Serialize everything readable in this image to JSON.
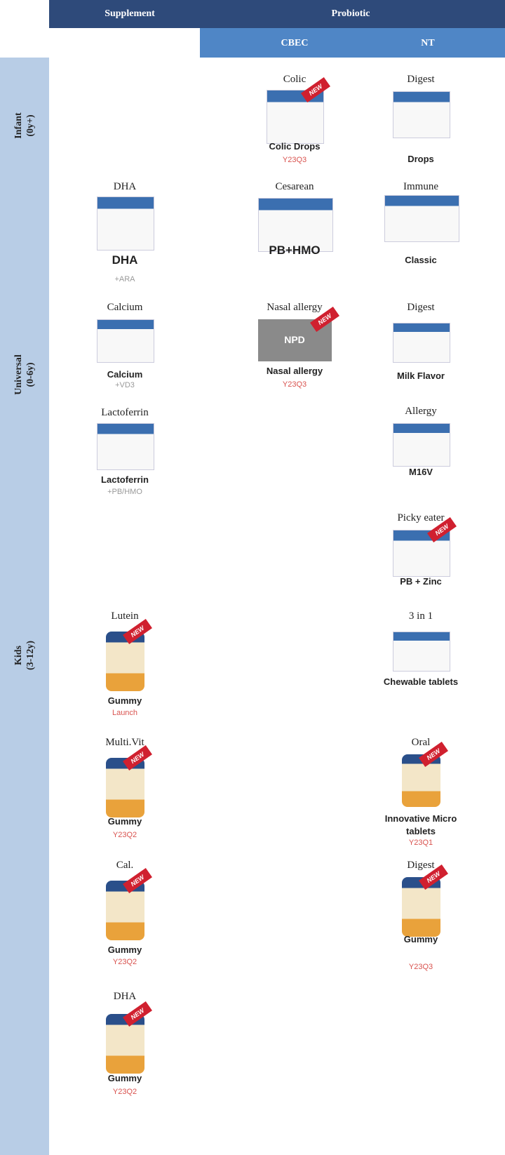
{
  "header": {
    "supplement": "Supplement",
    "probiotic": "Probiotic",
    "cbec": "CBEC",
    "nt": "NT"
  },
  "rows": [
    {
      "name": "Infant",
      "range": "(0y+)"
    },
    {
      "name": "Universal",
      "range": "(0-6y)"
    },
    {
      "name": "Kids",
      "range": "(3-12y)"
    }
  ],
  "badge": "NEW",
  "columns": {
    "supplement": [
      {
        "title": "DHA",
        "name": "DHA",
        "note": "+ARA",
        "note_color": "#999999"
      },
      {
        "title": "Calcium",
        "name": "Calcium",
        "note": "+VD3",
        "note_color": "#999999"
      },
      {
        "title": "Lactoferrin",
        "name": "Lactoferrin",
        "note": "+PB/HMO",
        "note_color": "#999999"
      },
      {
        "title": "Lutein",
        "name": "Gummy",
        "note": "Launch",
        "note_color": "#d9534f"
      },
      {
        "title": "Multi.Vit",
        "name": "Gummy",
        "note": "Y23Q2",
        "note_color": "#d9534f"
      },
      {
        "title": "Cal.",
        "name": "Gummy",
        "note": "Y23Q2",
        "note_color": "#d9534f"
      },
      {
        "title": "DHA",
        "name": "Gummy",
        "note": "Y23Q2",
        "note_color": "#d9534f"
      }
    ],
    "cbec": [
      {
        "title": "Colic",
        "name": "Colic Drops",
        "note": "Y23Q3",
        "note_color": "#d9534f"
      },
      {
        "title": "Cesarean",
        "name": "PB+HMO"
      },
      {
        "title": "Nasal allergy",
        "image_label": "NPD",
        "name": "Nasal allergy",
        "note": "Y23Q3",
        "note_color": "#d9534f"
      }
    ],
    "nt": [
      {
        "title": "Digest",
        "name": "Drops"
      },
      {
        "title": "Immune",
        "name": "Classic"
      },
      {
        "title": "Digest",
        "name": "Milk Flavor"
      },
      {
        "title": "Allergy",
        "name": "M16V"
      },
      {
        "title": "Picky eater",
        "name": "PB + Zinc"
      },
      {
        "title": "3 in 1",
        "name": "Chewable tablets"
      },
      {
        "title": "Oral",
        "name": "Innovative Micro tablets",
        "note": "Y23Q1",
        "note_color": "#d9534f"
      },
      {
        "title": "Digest",
        "name": "Gummy",
        "note": "Y23Q3",
        "note_color": "#d9534f"
      }
    ]
  }
}
